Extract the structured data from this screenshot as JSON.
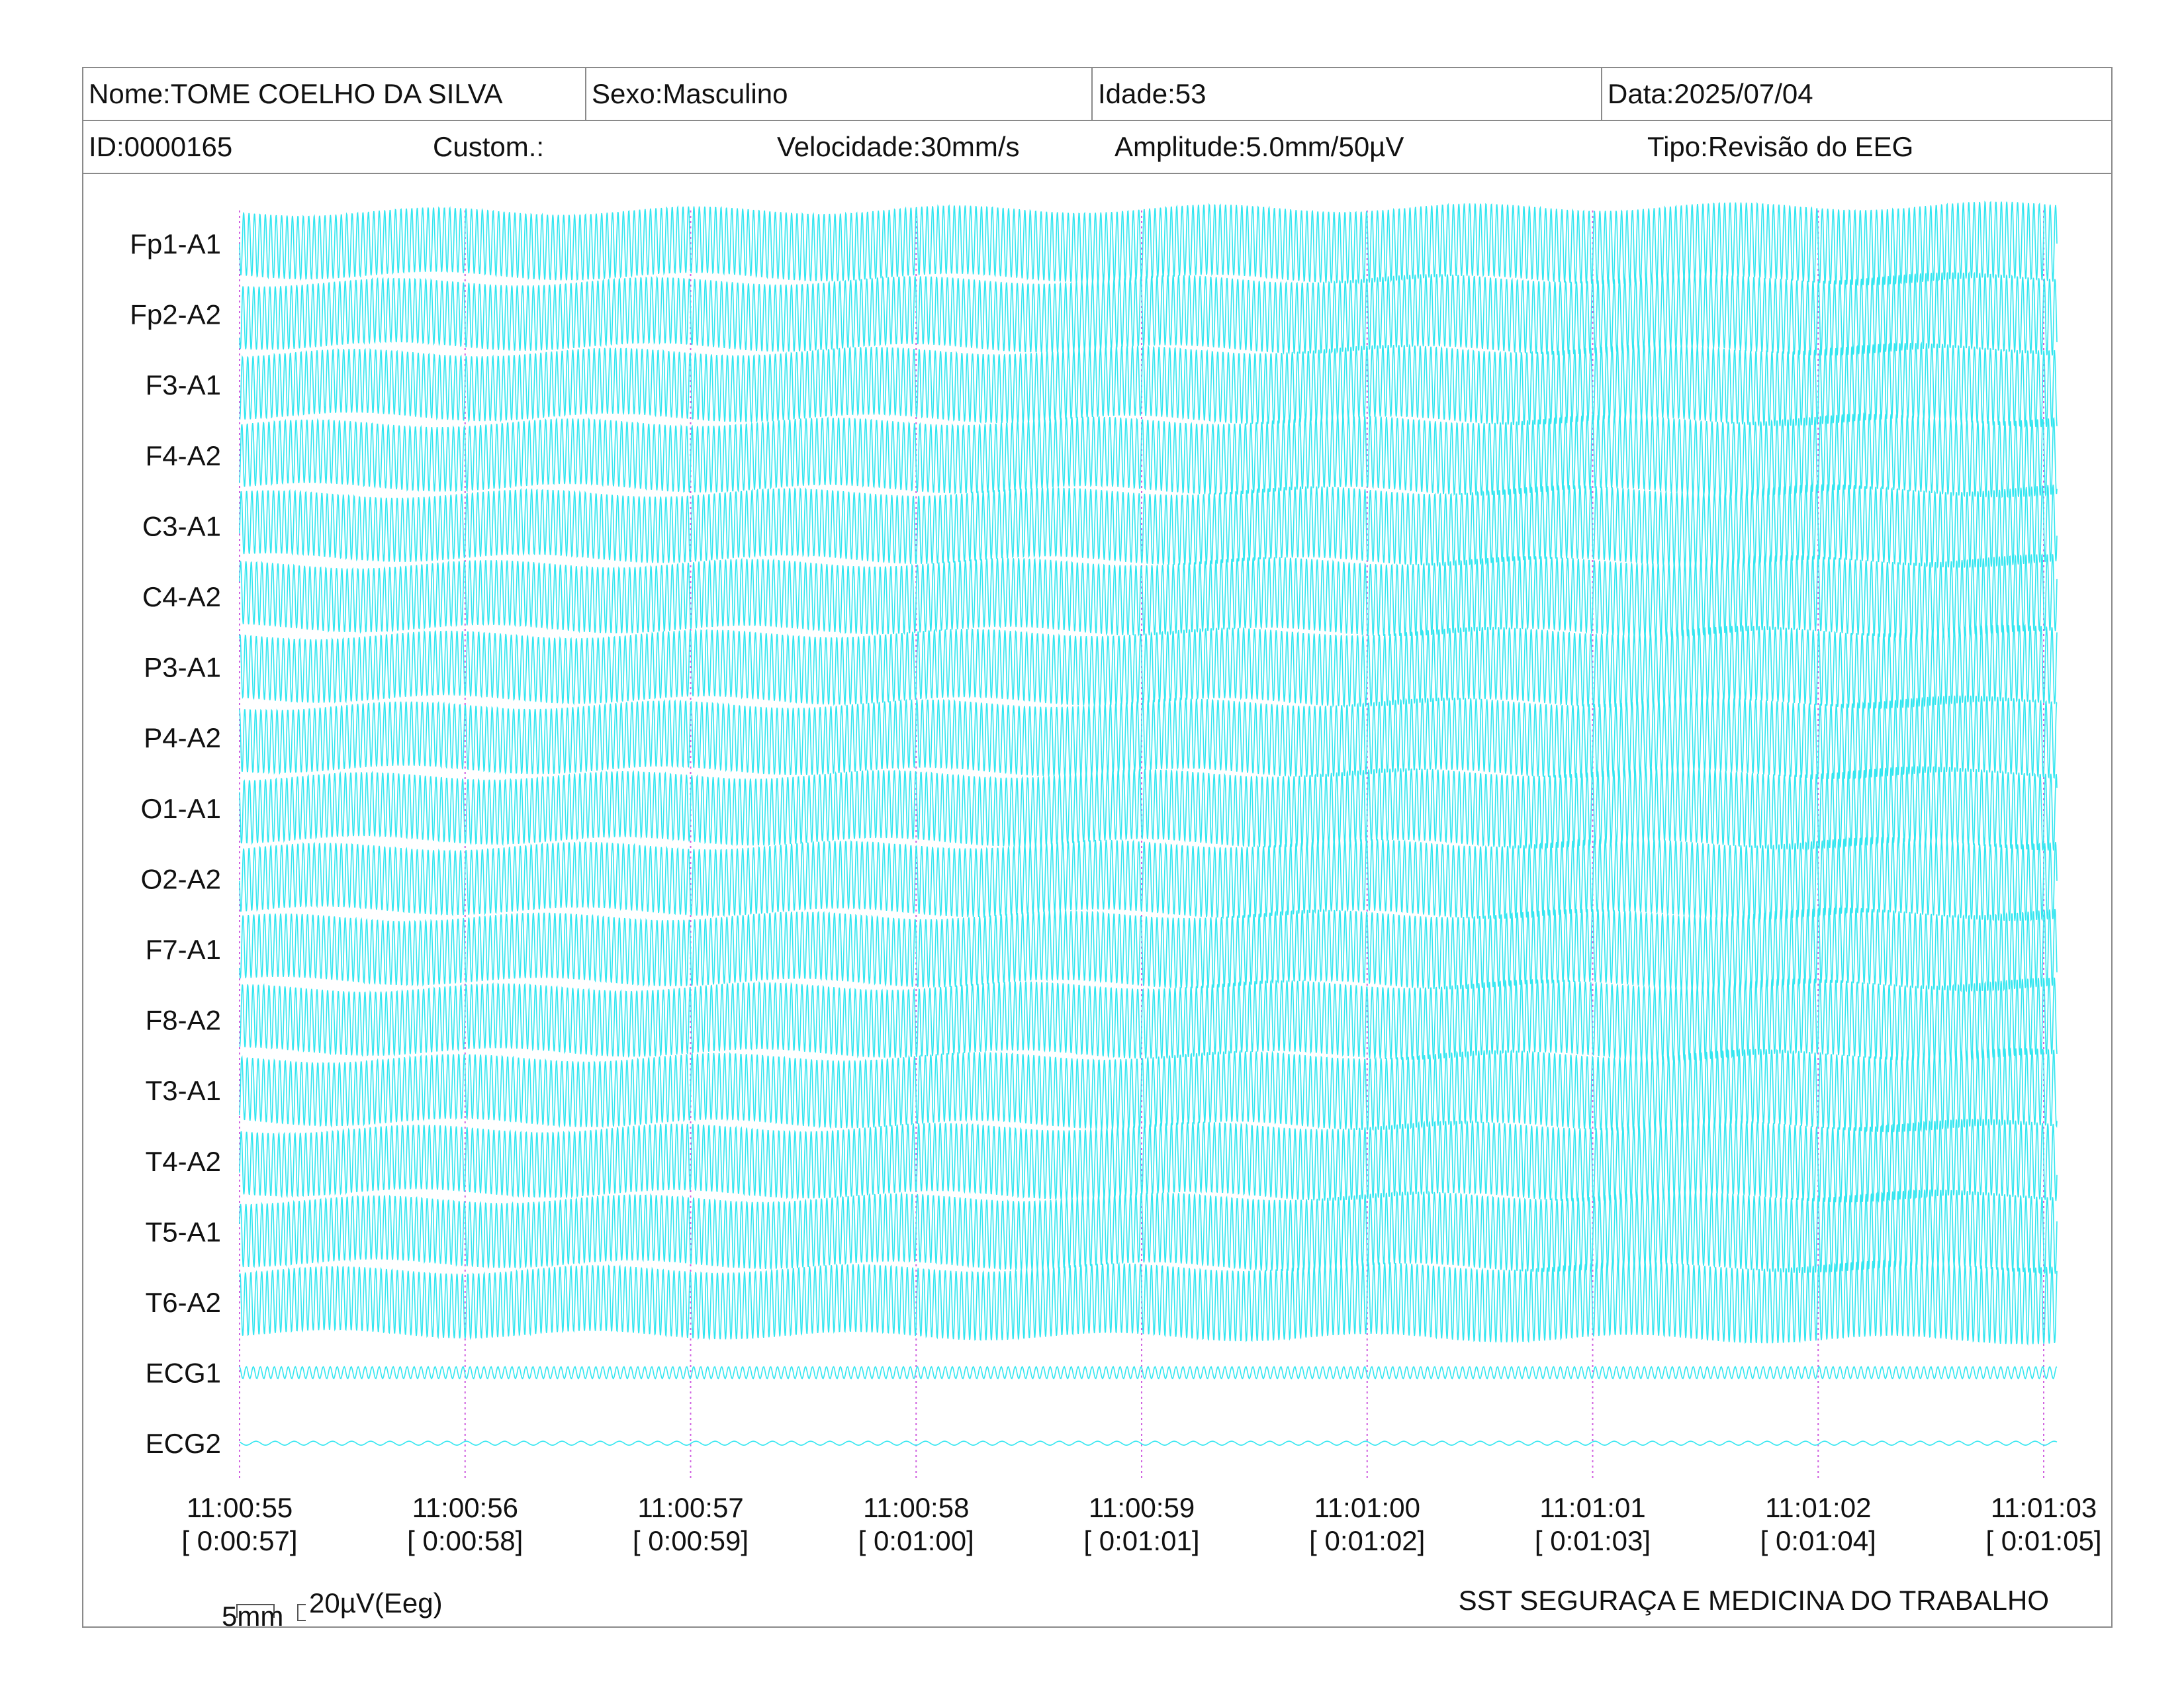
{
  "header": {
    "nome": "Nome:TOME COELHO DA SILVA",
    "sexo": "Sexo:Masculino",
    "idade": "Idade:53",
    "data": "Data:2025/07/04",
    "id": "ID:0000165",
    "custom": "Custom.:",
    "velocidade": "Velocidade:30mm/s",
    "amplitude": "Amplitude:5.0mm/50µV",
    "tipo": "Tipo:Revisão do EEG"
  },
  "footer": {
    "scale_time": "5mm",
    "scale_amp": "20µV(Eeg)",
    "company": "SST SEGURAÇA E MEDICINA DO TRABALHO"
  },
  "colors": {
    "trace": "#33e6f0",
    "second_marker": "#d060e0",
    "border": "#8a8a8a"
  },
  "chart_data": {
    "type": "line",
    "channels": [
      "Fp1-A1",
      "Fp2-A2",
      "F3-A1",
      "F4-A2",
      "C3-A1",
      "C4-A2",
      "P3-A1",
      "P4-A2",
      "O1-A1",
      "O2-A2",
      "F7-A1",
      "F8-A2",
      "T3-A1",
      "T4-A2",
      "T5-A1",
      "T6-A2",
      "ECG1",
      "ECG2"
    ],
    "time_ticks": [
      {
        "clock": "11:00:55",
        "elapsed": "[ 0:00:57]"
      },
      {
        "clock": "11:00:56",
        "elapsed": "[ 0:00:58]"
      },
      {
        "clock": "11:00:57",
        "elapsed": "[ 0:00:59]"
      },
      {
        "clock": "11:00:58",
        "elapsed": "[ 0:01:00]"
      },
      {
        "clock": "11:00:59",
        "elapsed": "[ 0:01:01]"
      },
      {
        "clock": "11:01:00",
        "elapsed": "[ 0:01:02]"
      },
      {
        "clock": "11:01:01",
        "elapsed": "[ 0:01:03]"
      },
      {
        "clock": "11:01:02",
        "elapsed": "[ 0:01:04]"
      },
      {
        "clock": "11:01:03",
        "elapsed": "[ 0:01:05]"
      }
    ],
    "grid": "vertical dotted line at each second",
    "legend": "none"
  }
}
